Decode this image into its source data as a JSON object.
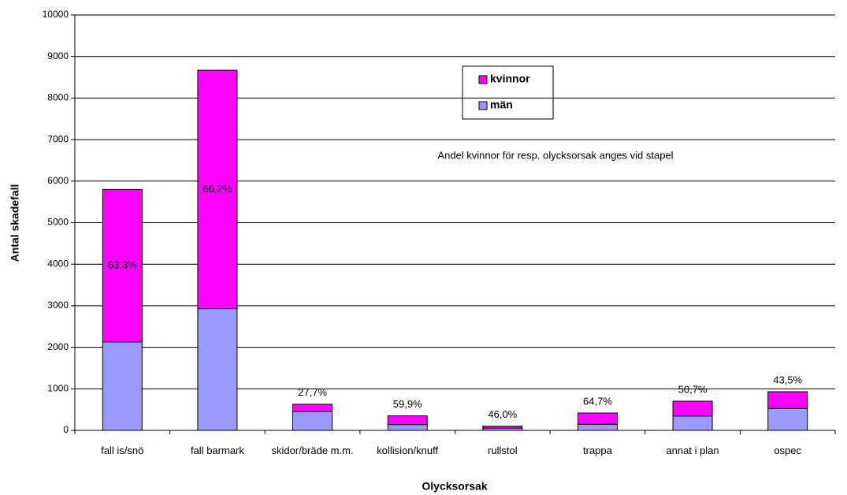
{
  "chart_data": {
    "type": "stacked_bar",
    "annotation": "Andel kvinnor för resp. olycksorsak anges vid stapel",
    "x_label": "Olycksorsak",
    "y_label": "Antal skadefall",
    "categories": [
      "fall is/snö",
      "fall barmark",
      "skidor/bräde m.m.",
      "kollision/knuff",
      "rullstol",
      "trappa",
      "annat i plan",
      "ospec"
    ],
    "series": [
      {
        "name": "män",
        "color": "#9999ff",
        "values": [
          2130,
          2930,
          455,
          140,
          54,
          147,
          346,
          525
        ]
      },
      {
        "name": "kvinnor",
        "color": "#ff00ff",
        "values": [
          3670,
          5740,
          175,
          210,
          46,
          270,
          356,
          405
        ]
      }
    ],
    "share_labels": [
      "63,3%",
      "66,2%",
      "27,7%",
      "59,9%",
      "46,0%",
      "64,7%",
      "50,7%",
      "43,5%"
    ],
    "ylim": [
      0,
      10000
    ],
    "yticks": [
      0,
      1000,
      2000,
      3000,
      4000,
      5000,
      6000,
      7000,
      8000,
      9000,
      10000
    ],
    "grid": true
  }
}
